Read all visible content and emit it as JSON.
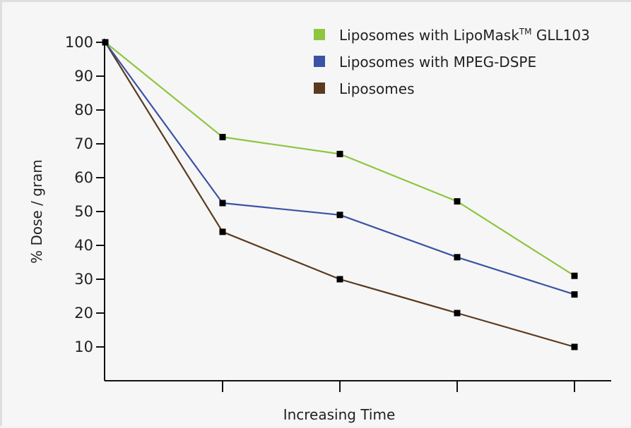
{
  "chart_data": {
    "type": "line",
    "title": "",
    "xlabel": "Increasing Time",
    "ylabel": "% Dose  / gram",
    "x": [
      0,
      1,
      2,
      3,
      4
    ],
    "x_tick_labels": [
      "",
      "",
      "",
      "",
      ""
    ],
    "ylim": [
      0,
      104
    ],
    "y_ticks": [
      10,
      20,
      30,
      40,
      50,
      60,
      70,
      80,
      90,
      100
    ],
    "grid": false,
    "legend_position": "top-right",
    "series": [
      {
        "name_prefix": "Liposomes with LipoMask",
        "name_superscript": "TM",
        "name_suffix": " GLL103",
        "color": "#8dc63f",
        "values": [
          100,
          72,
          67,
          53,
          31
        ]
      },
      {
        "name": "Liposomes with MPEG-DSPE",
        "color": "#3a53a4",
        "values": [
          100,
          52.5,
          49,
          36.5,
          25.5
        ]
      },
      {
        "name": "Liposomes",
        "color": "#5c3a1e",
        "values": [
          100,
          44,
          30,
          20,
          10
        ]
      }
    ]
  }
}
